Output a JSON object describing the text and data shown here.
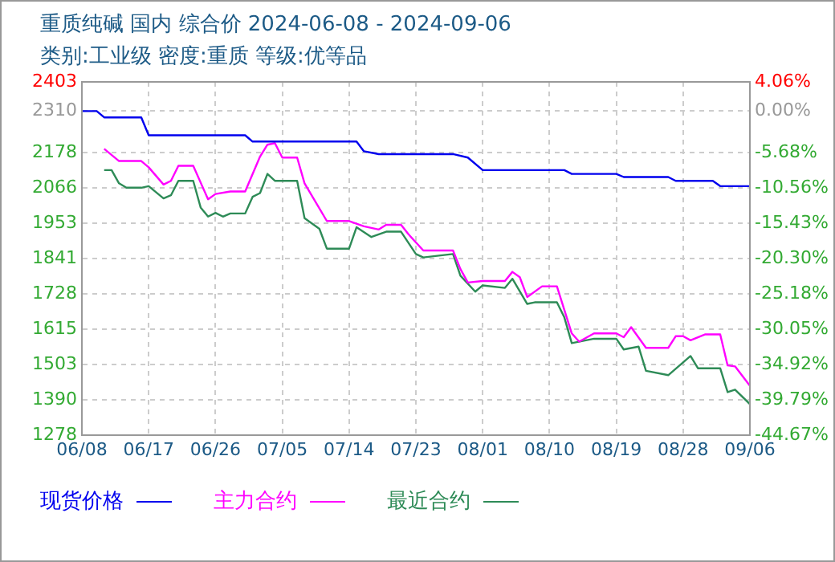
{
  "chart_data": {
    "type": "line",
    "title": "重质纯碱 国内 综合价 2024-06-08 - 2024-09-06",
    "subtitle": "类别:工业级 密度:重质 等级:优等品",
    "xlim": [
      "2024-06-08",
      "2024-09-06"
    ],
    "xticks": [
      {
        "value": "2024-06-08",
        "label": "06/08"
      },
      {
        "value": "2024-06-17",
        "label": "06/17"
      },
      {
        "value": "2024-06-26",
        "label": "06/26"
      },
      {
        "value": "2024-07-05",
        "label": "07/05"
      },
      {
        "value": "2024-07-14",
        "label": "07/14"
      },
      {
        "value": "2024-07-23",
        "label": "07/23"
      },
      {
        "value": "2024-08-01",
        "label": "08/01"
      },
      {
        "value": "2024-08-10",
        "label": "08/10"
      },
      {
        "value": "2024-08-19",
        "label": "08/19"
      },
      {
        "value": "2024-08-28",
        "label": "08/28"
      },
      {
        "value": "2024-09-06",
        "label": "09/06"
      }
    ],
    "ylim": [
      1278,
      2403
    ],
    "yticks": [
      1278,
      1390,
      1503,
      1615,
      1728,
      1841,
      1953,
      2066,
      2178,
      2310,
      2403
    ],
    "y2lim": [
      -44.67,
      4.06
    ],
    "y2ticks": [
      {
        "value": -44.67,
        "label": "-44.67%"
      },
      {
        "value": -39.79,
        "label": "-39.79%"
      },
      {
        "value": -34.92,
        "label": "-34.92%"
      },
      {
        "value": -30.05,
        "label": "-30.05%"
      },
      {
        "value": -25.18,
        "label": "-25.18%"
      },
      {
        "value": -20.3,
        "label": "-20.30%"
      },
      {
        "value": -15.43,
        "label": "-15.43%"
      },
      {
        "value": -10.56,
        "label": "-10.56%"
      },
      {
        "value": -5.68,
        "label": "-5.68%"
      },
      {
        "value": 0,
        "label": "0.00%"
      },
      {
        "value": 4.06,
        "label": "4.06%"
      }
    ],
    "grid": true,
    "legend": "bottom",
    "marker": "none",
    "line_style": "solid",
    "series": [
      {
        "name": "现货价格",
        "color": "#0000ee",
        "x": [
          "2024-06-08",
          "2024-06-10",
          "2024-06-11",
          "2024-06-16",
          "2024-06-17",
          "2024-06-30",
          "2024-07-01",
          "2024-07-15",
          "2024-07-16",
          "2024-07-18",
          "2024-07-28",
          "2024-07-30",
          "2024-08-01",
          "2024-08-12",
          "2024-08-13",
          "2024-08-19",
          "2024-08-20",
          "2024-08-26",
          "2024-08-27",
          "2024-09-01",
          "2024-09-02",
          "2024-09-06"
        ],
        "values": [
          2310,
          2310,
          2290,
          2290,
          2233,
          2233,
          2213,
          2213,
          2182,
          2173,
          2173,
          2162,
          2122,
          2122,
          2110,
          2110,
          2100,
          2100,
          2088,
          2088,
          2071,
          2071
        ]
      },
      {
        "name": "主力合约",
        "color": "#ff00ff",
        "x": [
          "2024-06-11",
          "2024-06-13",
          "2024-06-16",
          "2024-06-17",
          "2024-06-19",
          "2024-06-20",
          "2024-06-21",
          "2024-06-23",
          "2024-06-25",
          "2024-06-26",
          "2024-06-28",
          "2024-06-30",
          "2024-07-02",
          "2024-07-03",
          "2024-07-04",
          "2024-07-05",
          "2024-07-07",
          "2024-07-08",
          "2024-07-11",
          "2024-07-14",
          "2024-07-16",
          "2024-07-18",
          "2024-07-19",
          "2024-07-21",
          "2024-07-22",
          "2024-07-24",
          "2024-07-28",
          "2024-07-29",
          "2024-07-30",
          "2024-08-01",
          "2024-08-04",
          "2024-08-05",
          "2024-08-06",
          "2024-08-07",
          "2024-08-09",
          "2024-08-11",
          "2024-08-13",
          "2024-08-14",
          "2024-08-16",
          "2024-08-19",
          "2024-08-20",
          "2024-08-21",
          "2024-08-23",
          "2024-08-26",
          "2024-08-27",
          "2024-08-28",
          "2024-08-29",
          "2024-08-31",
          "2024-09-02",
          "2024-09-03",
          "2024-09-04",
          "2024-09-06"
        ],
        "values": [
          2190,
          2151,
          2151,
          2131,
          2076,
          2088,
          2136,
          2136,
          2029,
          2046,
          2054,
          2054,
          2165,
          2203,
          2208,
          2162,
          2162,
          2080,
          1960,
          1960,
          1943,
          1933,
          1948,
          1948,
          1918,
          1866,
          1866,
          1807,
          1764,
          1769,
          1769,
          1798,
          1781,
          1718,
          1752,
          1752,
          1602,
          1576,
          1602,
          1602,
          1590,
          1622,
          1556,
          1556,
          1593,
          1593,
          1580,
          1599,
          1599,
          1500,
          1497,
          1435
        ]
      },
      {
        "name": "最近合约",
        "color": "#2e8b57",
        "x": [
          "2024-06-11",
          "2024-06-12",
          "2024-06-13",
          "2024-06-14",
          "2024-06-16",
          "2024-06-17",
          "2024-06-19",
          "2024-06-20",
          "2024-06-21",
          "2024-06-23",
          "2024-06-24",
          "2024-06-25",
          "2024-06-26",
          "2024-06-27",
          "2024-06-28",
          "2024-06-30",
          "2024-07-01",
          "2024-07-02",
          "2024-07-03",
          "2024-07-04",
          "2024-07-07",
          "2024-07-08",
          "2024-07-10",
          "2024-07-11",
          "2024-07-14",
          "2024-07-15",
          "2024-07-17",
          "2024-07-19",
          "2024-07-21",
          "2024-07-23",
          "2024-07-24",
          "2024-07-28",
          "2024-07-29",
          "2024-07-31",
          "2024-08-01",
          "2024-08-04",
          "2024-08-05",
          "2024-08-07",
          "2024-08-08",
          "2024-08-11",
          "2024-08-12",
          "2024-08-13",
          "2024-08-16",
          "2024-08-19",
          "2024-08-20",
          "2024-08-22",
          "2024-08-23",
          "2024-08-26",
          "2024-08-29",
          "2024-08-30",
          "2024-09-02",
          "2024-09-03",
          "2024-09-04",
          "2024-09-06"
        ],
        "values": [
          2122,
          2122,
          2080,
          2066,
          2066,
          2071,
          2032,
          2042,
          2088,
          2088,
          2003,
          1974,
          1986,
          1974,
          1984,
          1984,
          2037,
          2049,
          2110,
          2088,
          2088,
          1969,
          1935,
          1872,
          1872,
          1940,
          1909,
          1926,
          1926,
          1855,
          1844,
          1855,
          1786,
          1735,
          1755,
          1747,
          1776,
          1696,
          1701,
          1701,
          1653,
          1571,
          1585,
          1585,
          1551,
          1560,
          1483,
          1469,
          1530,
          1491,
          1491,
          1415,
          1423,
          1377
        ]
      }
    ]
  }
}
